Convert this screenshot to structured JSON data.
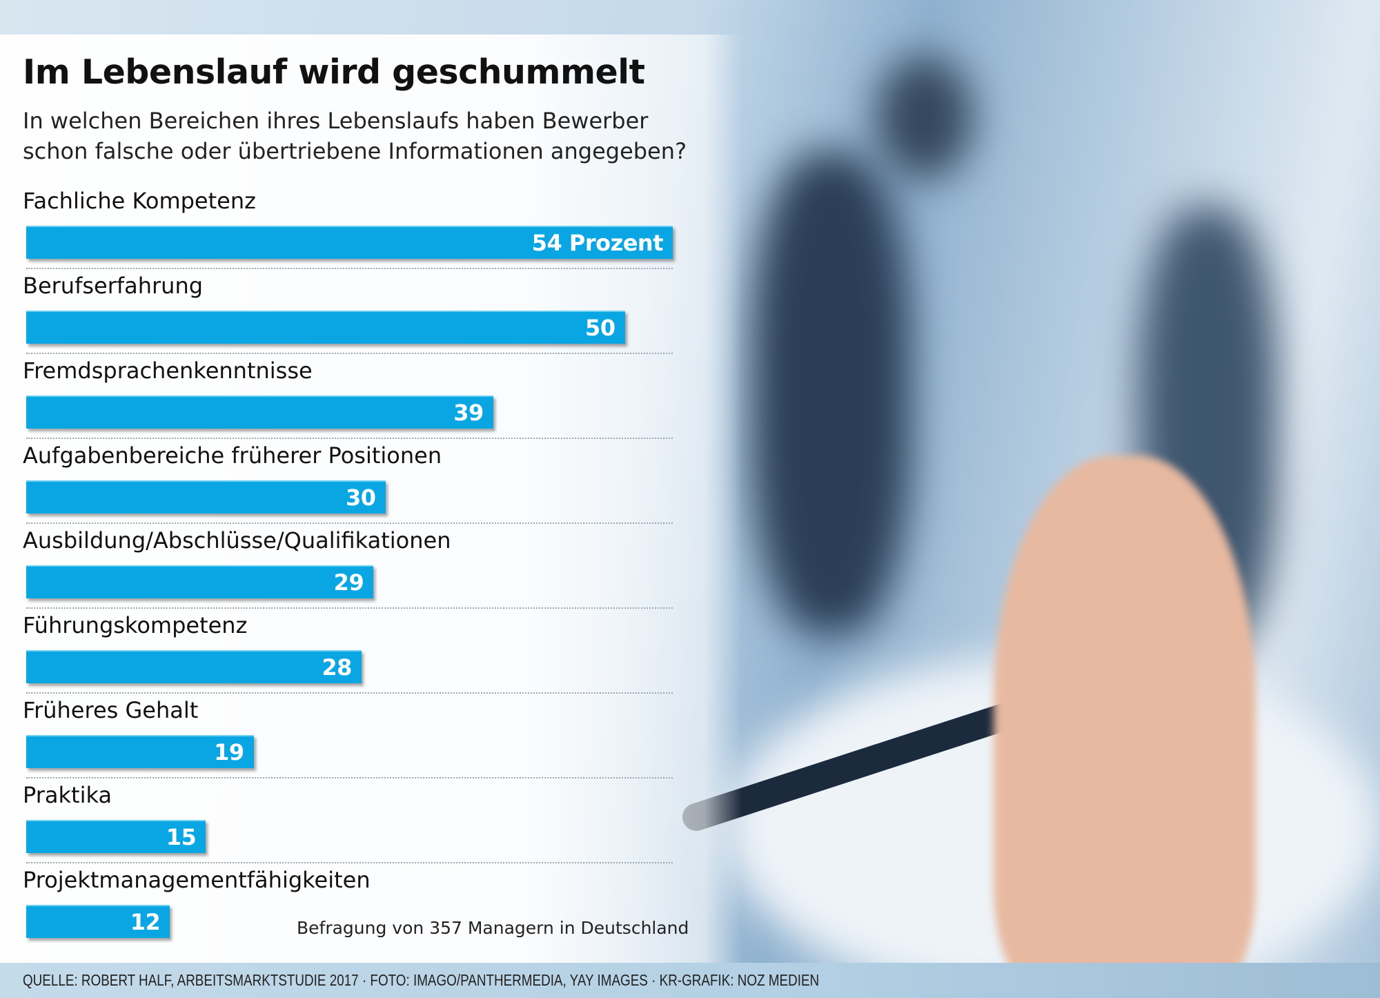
{
  "chart_data": {
    "type": "bar",
    "orientation": "horizontal",
    "title": "Im Lebenslauf wird geschummelt",
    "subtitle": [
      "In welchen Bereichen ihres Lebenslaufs haben Bewerber",
      "schon falsche oder übertriebene Informationen angegeben?"
    ],
    "unit": "Prozent",
    "categories": [
      "Fachliche Kompetenz",
      "Berufserfahrung",
      "Fremdsprachenkenntnisse",
      "Aufgabenbereiche früherer Positionen",
      "Ausbildung/Abschlüsse/Qualifikationen",
      "Führungskompetenz",
      "Früheres Gehalt",
      "Praktika",
      "Projektmanagementfähigkeiten"
    ],
    "values": [
      54,
      50,
      39,
      30,
      29,
      28,
      19,
      15,
      12
    ],
    "value_labels": [
      "54 Prozent",
      "50",
      "39",
      "30",
      "29",
      "28",
      "19",
      "15",
      "12"
    ],
    "bar_color": "#0aa6e3",
    "note": "Befragung von 357 Managern in Deutschland",
    "source": "QUELLE: ROBERT HALF, ARBEITSMARKTSTUDIE 2017 · FOTO: IMAGO/PANTHERMEDIA, YAY IMAGES · KR-GRAFIK: NOZ MEDIEN"
  }
}
